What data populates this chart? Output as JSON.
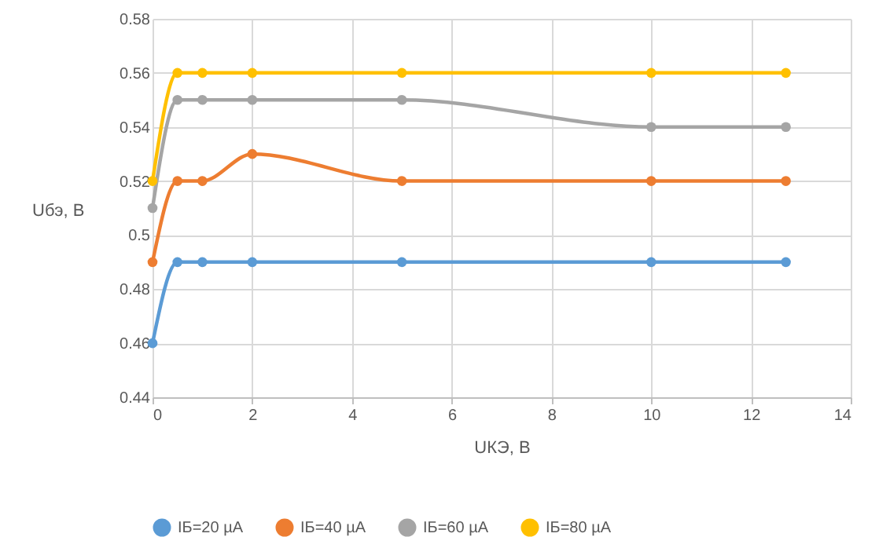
{
  "chart_data": {
    "type": "line",
    "xlabel": "UКЭ, В",
    "ylabel": "Uбэ, В",
    "x": [
      0,
      0.5,
      1,
      2,
      5,
      10,
      12.7
    ],
    "xlim": [
      0,
      14
    ],
    "xticks": [
      0,
      2,
      4,
      6,
      8,
      10,
      12,
      14
    ],
    "ylim": [
      0.44,
      0.58
    ],
    "yticks": [
      {
        "value": 0.44,
        "label": "0.44"
      },
      {
        "value": 0.46,
        "label": "0.46"
      },
      {
        "value": 0.48,
        "label": "0.48"
      },
      {
        "value": 0.5,
        "label": "0.5"
      },
      {
        "value": 0.52,
        "label": "0.52"
      },
      {
        "value": 0.54,
        "label": "0.54"
      },
      {
        "value": 0.56,
        "label": "0.56"
      },
      {
        "value": 0.58,
        "label": "0.58"
      }
    ],
    "grid": true,
    "legend": "bottom",
    "marker": "circle",
    "series": [
      {
        "name": "IБ=20 µA",
        "color": "#5b9bd5",
        "values": [
          0.46,
          0.49,
          0.49,
          0.49,
          0.49,
          0.49,
          0.49
        ]
      },
      {
        "name": "IБ=40 µA",
        "color": "#ed7d31",
        "values": [
          0.49,
          0.52,
          0.52,
          0.53,
          0.52,
          0.52,
          0.52
        ]
      },
      {
        "name": "IБ=60 µA",
        "color": "#a5a5a5",
        "values": [
          0.51,
          0.55,
          0.55,
          0.55,
          0.55,
          0.54,
          0.54
        ]
      },
      {
        "name": "IБ=80 µA",
        "color": "#ffc000",
        "values": [
          0.52,
          0.56,
          0.56,
          0.56,
          0.56,
          0.56,
          0.56
        ]
      }
    ]
  }
}
